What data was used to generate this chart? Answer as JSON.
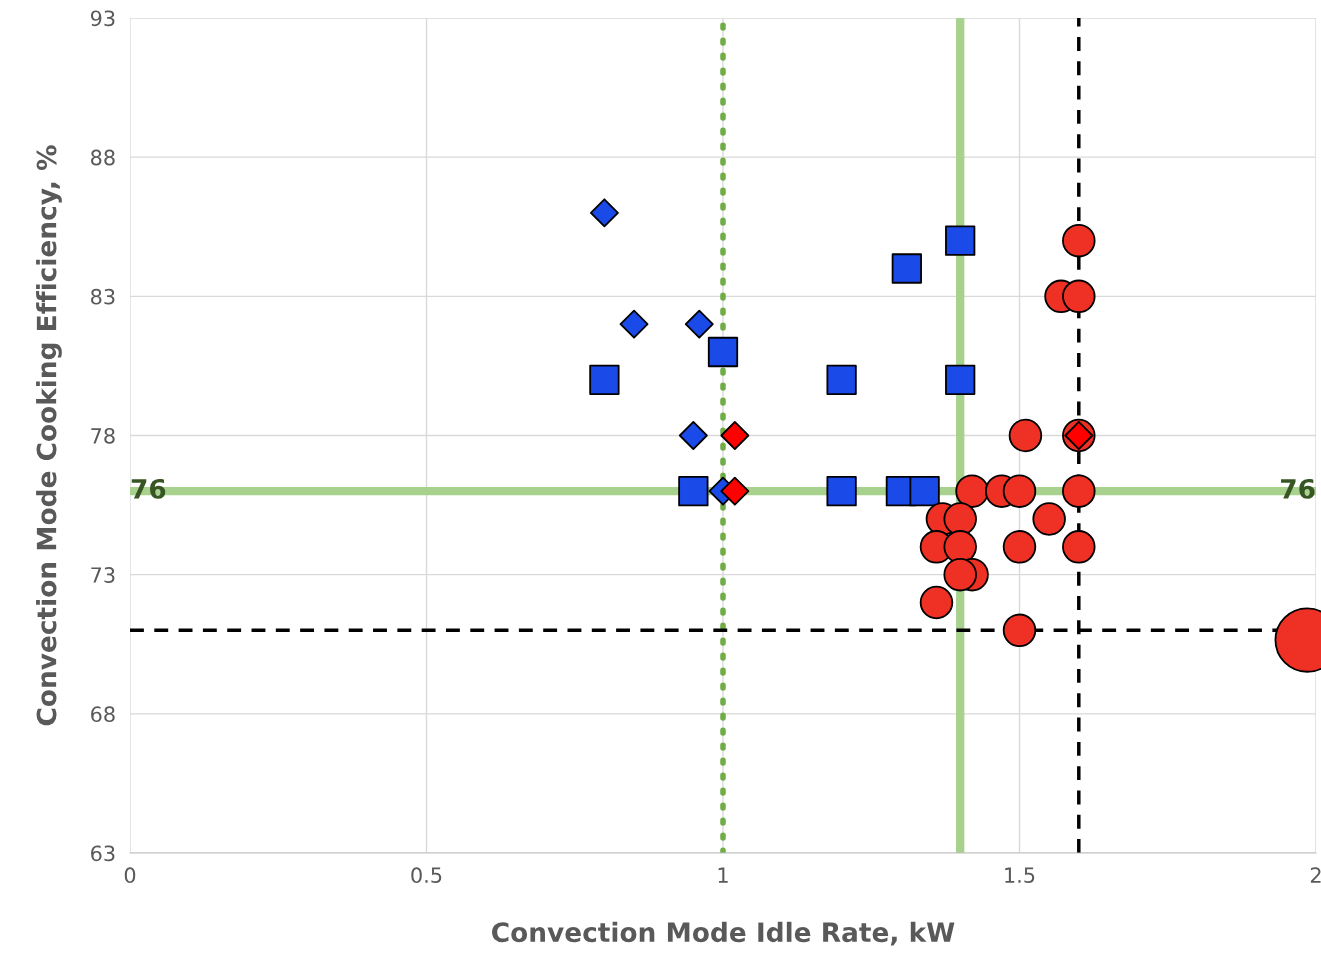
{
  "chart_data": {
    "type": "scatter",
    "xlabel": "Convection Mode Idle Rate, kW",
    "ylabel": "Convection Mode Cooking Efficiency, %",
    "xlim": [
      0,
      2
    ],
    "xticks": [
      0,
      0.5,
      1,
      1.5,
      2
    ],
    "ylim": [
      63,
      93
    ],
    "yticks": [
      63,
      68,
      73,
      78,
      83,
      88,
      93
    ],
    "grid": true,
    "series": [
      {
        "marker": "diamond",
        "color": "#1a4ae8",
        "x": [
          0.8,
          0.85,
          0.96,
          0.95,
          1.0
        ],
        "values": [
          86,
          82,
          82,
          78,
          76
        ]
      },
      {
        "marker": "square",
        "color": "#1a4ae8",
        "x": [
          0.8,
          1.0,
          1.2,
          1.31,
          1.4,
          1.4,
          0.95,
          1.2,
          1.3,
          1.34
        ],
        "values": [
          80,
          81,
          80,
          84,
          85,
          80,
          76,
          76,
          76,
          76
        ]
      },
      {
        "type": "bubble",
        "marker": "circle",
        "color": "#ee3124",
        "x": [
          1.6,
          1.57,
          1.6,
          1.51,
          1.6,
          1.42,
          1.47,
          1.5,
          1.6,
          1.37,
          1.4,
          1.55,
          1.36,
          1.4,
          1.5,
          1.6,
          1.42,
          1.4,
          1.36,
          1.5,
          1.985
        ],
        "values": [
          85,
          83,
          83,
          78,
          78,
          76,
          76,
          76,
          76,
          75,
          75,
          75,
          74,
          74,
          74,
          74,
          73,
          73,
          72,
          71,
          70.65
        ],
        "sizes": [
          0.25,
          0.25,
          0.25,
          0.25,
          0.25,
          0.25,
          0.25,
          0.25,
          0.25,
          0.25,
          0.25,
          0.25,
          0.25,
          0.25,
          0.25,
          0.25,
          0.25,
          0.25,
          0.25,
          0.25,
          1
        ]
      },
      {
        "marker": "diamond",
        "color": "#ff0000",
        "x": [
          1.02,
          1.02,
          1.6
        ],
        "values": [
          78,
          76,
          78
        ]
      }
    ],
    "ref_lines": [
      {
        "axis": "x",
        "value": 1,
        "color": "#70ad47",
        "line_style": "dotted"
      },
      {
        "axis": "x",
        "value": 1.4,
        "color": "#a9d18e",
        "line_style": "solid"
      },
      {
        "axis": "x",
        "value": 1.6,
        "color": "#000000",
        "line_style": "dashed"
      },
      {
        "axis": "y",
        "value": 76,
        "label": "76",
        "color": "#a9d18e",
        "line_style": "solid"
      },
      {
        "axis": "y",
        "value": 71,
        "color": "#000000",
        "line_style": "dashed"
      }
    ]
  }
}
